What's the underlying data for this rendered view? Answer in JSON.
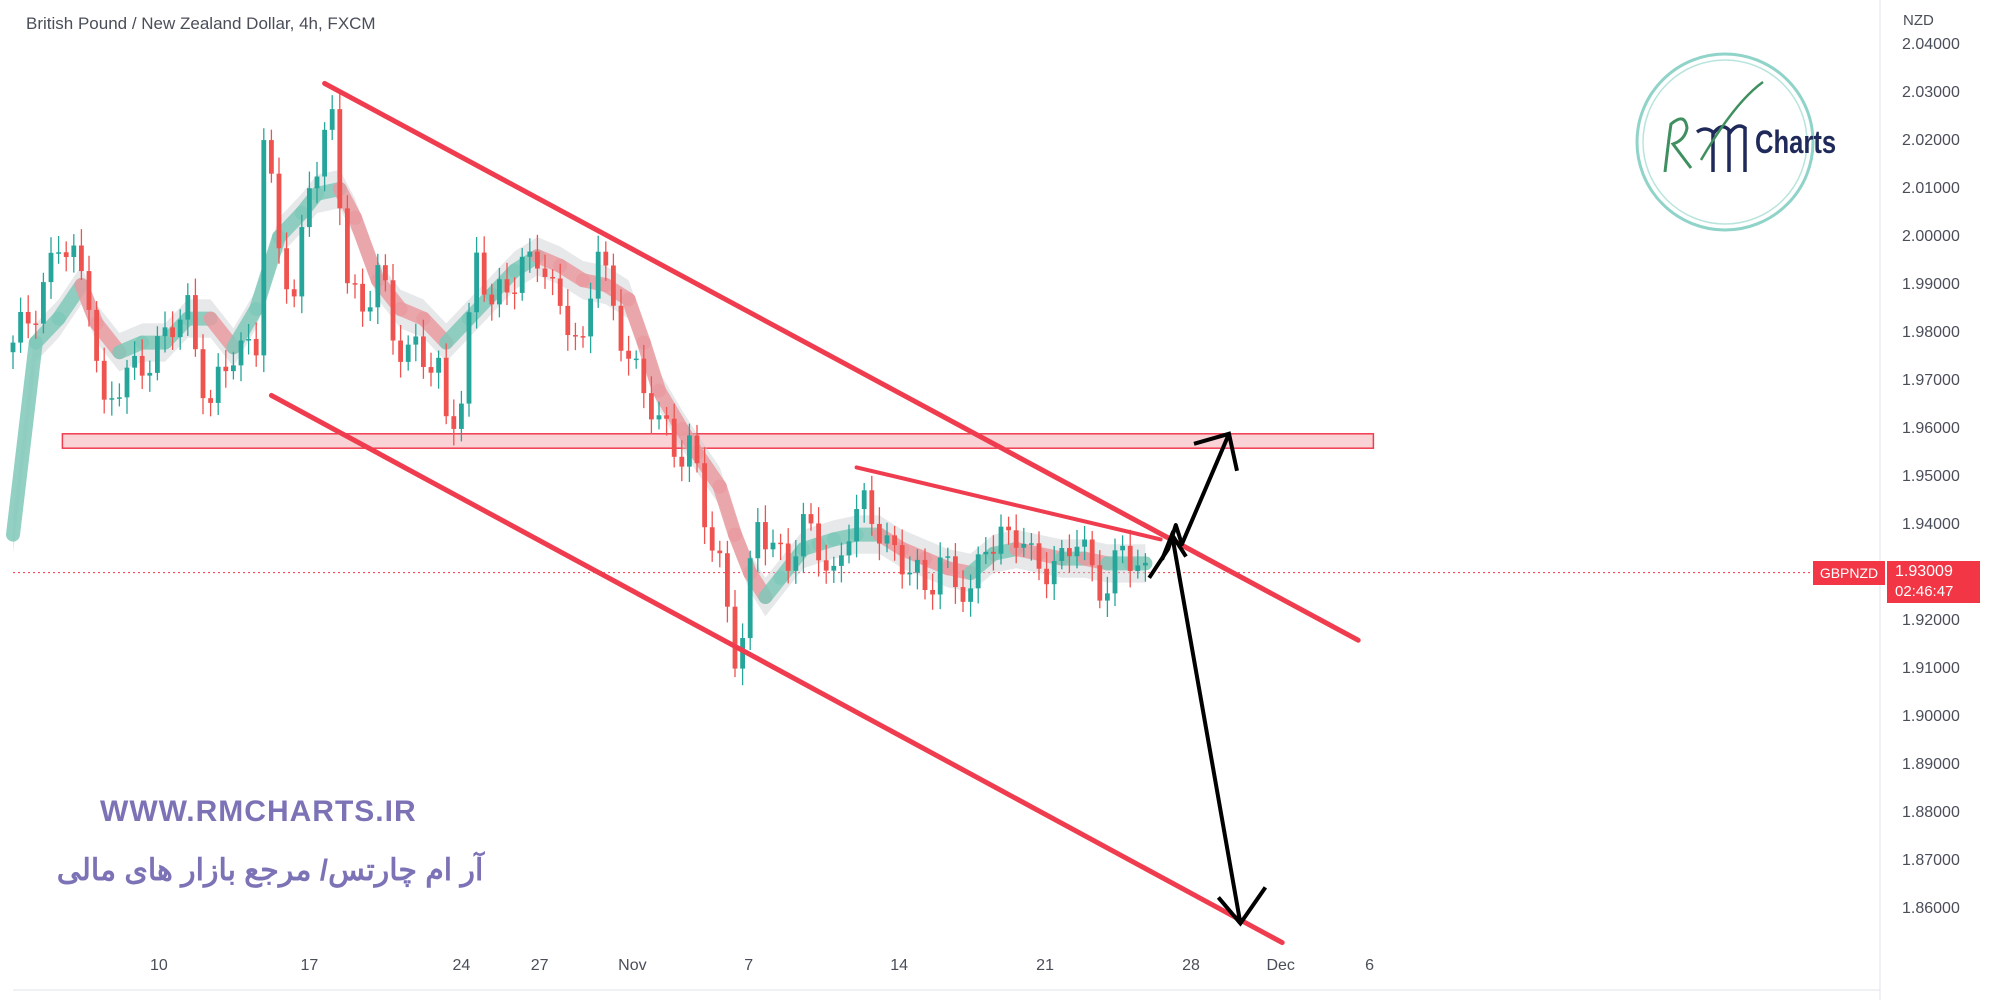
{
  "header": {
    "title": "British Pound / New Zealand Dollar, 4h, FXCM",
    "currency": "NZD"
  },
  "price_tag": {
    "symbol": "GBPNZD",
    "price": "1.93009",
    "countdown": "02:46:47"
  },
  "watermark": {
    "url": "WWW.RMCHARTS.IR",
    "persian": "آر ام چارتس/ مرجع بازار های مالی",
    "logo_text": "Charts"
  },
  "colors": {
    "up": "#26a69a",
    "down": "#ef5350",
    "trendline": "#ef3d4f",
    "zone": "#f7c8cc",
    "arrow": "#000000",
    "logo_ring": "#8fd3c9"
  },
  "chart_data": {
    "type": "candlestick",
    "symbol": "GBPNZD",
    "timeframe": "4h",
    "ylim": [
      1.853,
      2.044
    ],
    "xlim": [
      0,
      200
    ],
    "y_ticks": [
      "2.04000",
      "2.03000",
      "2.02000",
      "2.01000",
      "2.00000",
      "1.99000",
      "1.98000",
      "1.97000",
      "1.96000",
      "1.95000",
      "1.94000",
      "1.93000",
      "1.92000",
      "1.91000",
      "1.90000",
      "1.89000",
      "1.88000",
      "1.87000",
      "1.86000"
    ],
    "x_ticks": [
      {
        "label": "10",
        "x": 19.2
      },
      {
        "label": "17",
        "x": 39.0
      },
      {
        "label": "24",
        "x": 59.0
      },
      {
        "label": "27",
        "x": 69.3
      },
      {
        "label": "Nov",
        "x": 81.5
      },
      {
        "label": "7",
        "x": 96.8
      },
      {
        "label": "14",
        "x": 116.6
      },
      {
        "label": "21",
        "x": 135.8
      },
      {
        "label": "28",
        "x": 155.0
      },
      {
        "label": "Dec",
        "x": 166.8
      },
      {
        "label": "6",
        "x": 178.5
      }
    ],
    "last_price": 1.93009,
    "close_path": [
      [
        0,
        1.976
      ],
      [
        6,
        1.998
      ],
      [
        10,
        1.99
      ],
      [
        12,
        1.963
      ],
      [
        14,
        1.968
      ],
      [
        17,
        1.975
      ],
      [
        20,
        1.978
      ],
      [
        23,
        1.985
      ],
      [
        26,
        1.965
      ],
      [
        29,
        1.975
      ],
      [
        32,
        1.98
      ],
      [
        33,
        2.022
      ],
      [
        35,
        1.995
      ],
      [
        37,
        1.988
      ],
      [
        39,
        2.013
      ],
      [
        42,
        2.022
      ],
      [
        44,
        1.993
      ],
      [
        46,
        1.985
      ],
      [
        48,
        1.993
      ],
      [
        50,
        1.978
      ],
      [
        53,
        1.978
      ],
      [
        56,
        1.97
      ],
      [
        57,
        1.96
      ],
      [
        59,
        1.968
      ],
      [
        61,
        1.997
      ],
      [
        63,
        1.983
      ],
      [
        65,
        1.991
      ],
      [
        67,
        1.995
      ],
      [
        69,
        1.995
      ],
      [
        71,
        1.987
      ],
      [
        73,
        1.985
      ],
      [
        75,
        1.976
      ],
      [
        77,
        1.998
      ],
      [
        79,
        1.984
      ],
      [
        81,
        1.978
      ],
      [
        83,
        1.965
      ],
      [
        85,
        1.962
      ],
      [
        87,
        1.957
      ],
      [
        89,
        1.957
      ],
      [
        91,
        1.94
      ],
      [
        93,
        1.932
      ],
      [
        95,
        1.915
      ],
      [
        96,
        1.917
      ],
      [
        98,
        1.939
      ],
      [
        100,
        1.936
      ],
      [
        102,
        1.934
      ],
      [
        104,
        1.938
      ],
      [
        106,
        1.935
      ],
      [
        108,
        1.93
      ],
      [
        110,
        1.94
      ],
      [
        112,
        1.942
      ],
      [
        114,
        1.94
      ],
      [
        116,
        1.935
      ],
      [
        118,
        1.93
      ],
      [
        120,
        1.925
      ],
      [
        122,
        1.935
      ],
      [
        124,
        1.928
      ],
      [
        126,
        1.923
      ],
      [
        128,
        1.938
      ],
      [
        130,
        1.938
      ],
      [
        132,
        1.937
      ],
      [
        134,
        1.932
      ],
      [
        136,
        1.933
      ],
      [
        138,
        1.932
      ],
      [
        140,
        1.936
      ],
      [
        142,
        1.931
      ],
      [
        144,
        1.928
      ],
      [
        146,
        1.934
      ],
      [
        148,
        1.93
      ],
      [
        149,
        1.93
      ]
    ],
    "sma_fast": [
      [
        0,
        1.938
      ],
      [
        3,
        1.978
      ],
      [
        6,
        1.983
      ],
      [
        9,
        1.99
      ],
      [
        11,
        1.982
      ],
      [
        14,
        1.976
      ],
      [
        17,
        1.978
      ],
      [
        20,
        1.978
      ],
      [
        23,
        1.983
      ],
      [
        26,
        1.983
      ],
      [
        29,
        1.977
      ],
      [
        32,
        1.985
      ],
      [
        35,
        2.0
      ],
      [
        38,
        2.005
      ],
      [
        40,
        2.009
      ],
      [
        43,
        2.01
      ],
      [
        45,
        2.004
      ],
      [
        48,
        1.991
      ],
      [
        51,
        1.985
      ],
      [
        54,
        1.983
      ],
      [
        57,
        1.978
      ],
      [
        60,
        1.983
      ],
      [
        63,
        1.988
      ],
      [
        66,
        1.993
      ],
      [
        69,
        1.996
      ],
      [
        72,
        1.994
      ],
      [
        75,
        1.991
      ],
      [
        78,
        1.99
      ],
      [
        81,
        1.987
      ],
      [
        83,
        1.978
      ],
      [
        85,
        1.968
      ],
      [
        88,
        1.96
      ],
      [
        90,
        1.955
      ],
      [
        93,
        1.948
      ],
      [
        95,
        1.938
      ],
      [
        97,
        1.93
      ],
      [
        99,
        1.925
      ],
      [
        101,
        1.929
      ],
      [
        104,
        1.935
      ],
      [
        106,
        1.936
      ],
      [
        108,
        1.937
      ],
      [
        111,
        1.938
      ],
      [
        114,
        1.938
      ],
      [
        117,
        1.935
      ],
      [
        120,
        1.933
      ],
      [
        123,
        1.931
      ],
      [
        126,
        1.93
      ],
      [
        129,
        1.934
      ],
      [
        132,
        1.935
      ],
      [
        135,
        1.934
      ],
      [
        138,
        1.933
      ],
      [
        141,
        1.933
      ],
      [
        144,
        1.932
      ],
      [
        147,
        1.932
      ],
      [
        149,
        1.932
      ]
    ],
    "annotations": {
      "channel_upper": [
        [
          41,
          2.032
        ],
        [
          177,
          1.916
        ]
      ],
      "channel_lower": [
        [
          34,
          1.967
        ],
        [
          167,
          1.853
        ]
      ],
      "triangle_top": [
        [
          111,
          1.952
        ],
        [
          151,
          1.937
        ]
      ],
      "zone": {
        "x": [
          6.5,
          179
        ],
        "y": [
          1.956,
          1.959
        ]
      },
      "arrow_path": [
        [
          149.5,
          1.929
        ],
        [
          152,
          1.935
        ],
        [
          153,
          1.94
        ],
        [
          153.8,
          1.936
        ],
        [
          160,
          1.959
        ]
      ],
      "arrow_down": [
        [
          152.5,
          1.938
        ],
        [
          161.5,
          1.857
        ]
      ]
    }
  }
}
